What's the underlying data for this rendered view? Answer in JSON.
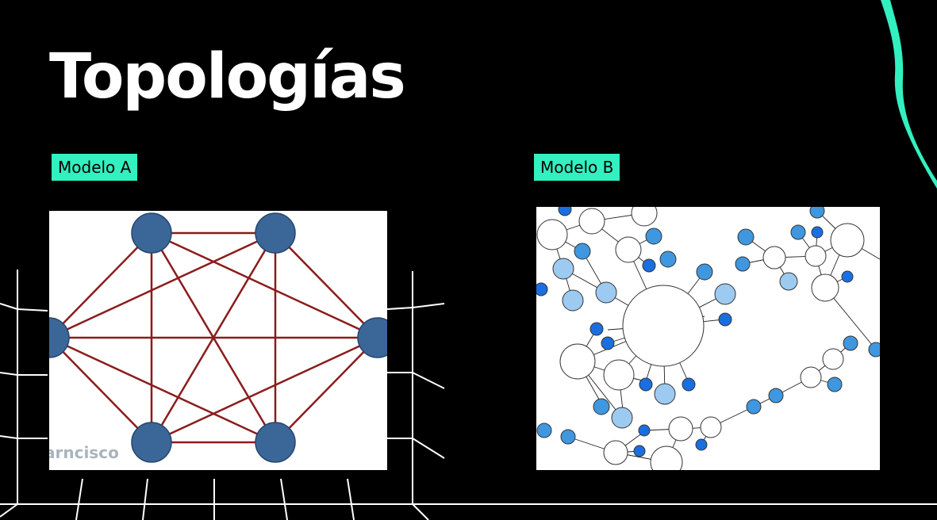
{
  "slide": {
    "title": "Topologías",
    "model_a": {
      "label": "Modelo A",
      "watermark": "arncisco"
    },
    "model_b": {
      "label": "Modelo B"
    }
  },
  "colors": {
    "background": "#000000",
    "accent": "#33f0c0",
    "mesh_node": "#3b6698",
    "mesh_edge": "#8b1c1c",
    "graph_node_dark": "#1a6fe0",
    "graph_node_mid": "#3f97e0",
    "graph_node_light": "#9dcaf0",
    "graph_node_empty": "#ffffff"
  },
  "icons": [
    "teal-brush-stroke-icon",
    "wireframe-grid-decoration"
  ]
}
